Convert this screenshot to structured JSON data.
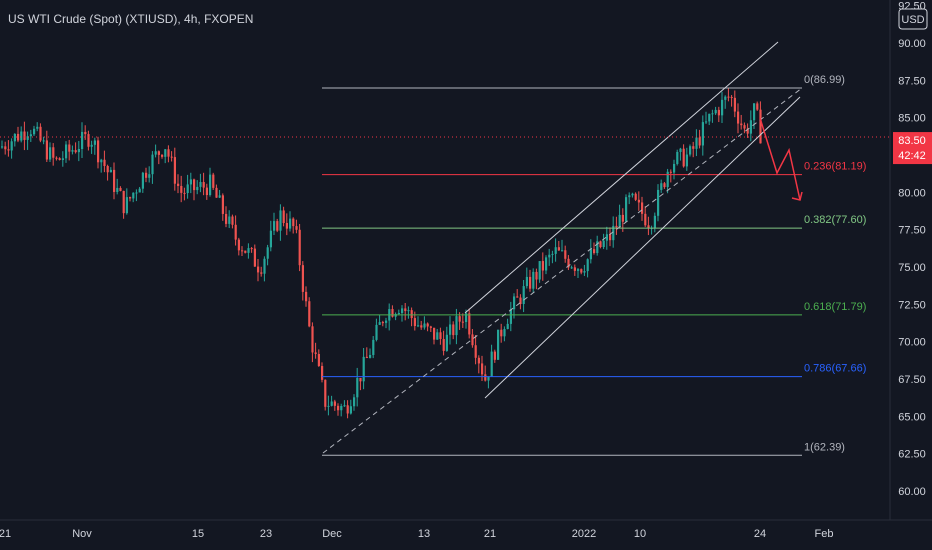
{
  "header": {
    "symbol": "US WTI Crude (Spot) (XTIUSD)",
    "interval": "4h",
    "broker": "FXOPEN"
  },
  "price_axis": {
    "currency": "USD",
    "ticks": [
      "92.50",
      "90.00",
      "87.50",
      "85.00",
      "82.50",
      "80.00",
      "77.50",
      "75.00",
      "72.50",
      "70.00",
      "67.50",
      "65.00",
      "62.50",
      "60.00"
    ],
    "last_price": "83.50",
    "countdown": "42:42"
  },
  "colors": {
    "background": "#131722",
    "up": "#26a69a",
    "down": "#ef5350",
    "fib_0": "#b2b5be",
    "fib_0236": "#f23645",
    "fib_0382": "#81c784",
    "fib_0618": "#4caf50",
    "fib_0786": "#2962ff",
    "channel": "#d1d4dc",
    "last_price_label": "#f23645"
  },
  "chart_data": {
    "type": "candlestick",
    "title": "US WTI Crude (Spot) (XTIUSD), 4h, FXOPEN",
    "x_ticks": [
      "21",
      "Nov",
      "15",
      "23",
      "Dec",
      "13",
      "21",
      "2022",
      "10",
      "24",
      "Feb"
    ],
    "ylim": [
      58.8,
      93
    ],
    "grid": false,
    "close_path": [
      {
        "t": 0,
        "price": 83.0
      },
      {
        "t": 30,
        "price": 84.4
      },
      {
        "t": 55,
        "price": 82.0
      },
      {
        "t": 90,
        "price": 83.8
      },
      {
        "t": 125,
        "price": 79.0
      },
      {
        "t": 150,
        "price": 82.0
      },
      {
        "t": 165,
        "price": 83.2
      },
      {
        "t": 180,
        "price": 80.0
      },
      {
        "t": 210,
        "price": 80.5
      },
      {
        "t": 235,
        "price": 77.0
      },
      {
        "t": 260,
        "price": 75.0
      },
      {
        "t": 280,
        "price": 78.5
      },
      {
        "t": 295,
        "price": 77.5
      },
      {
        "t": 310,
        "price": 70.5
      },
      {
        "t": 325,
        "price": 66.0
      },
      {
        "t": 345,
        "price": 65.5
      },
      {
        "t": 365,
        "price": 68.5
      },
      {
        "t": 385,
        "price": 72.0
      },
      {
        "t": 400,
        "price": 72.5
      },
      {
        "t": 420,
        "price": 71.0
      },
      {
        "t": 445,
        "price": 70.0
      },
      {
        "t": 465,
        "price": 72.0
      },
      {
        "t": 485,
        "price": 67.5
      },
      {
        "t": 505,
        "price": 71.5
      },
      {
        "t": 530,
        "price": 74.0
      },
      {
        "t": 555,
        "price": 76.0
      },
      {
        "t": 580,
        "price": 75.0
      },
      {
        "t": 610,
        "price": 77.0
      },
      {
        "t": 630,
        "price": 79.5
      },
      {
        "t": 650,
        "price": 78.0
      },
      {
        "t": 670,
        "price": 82.0
      },
      {
        "t": 690,
        "price": 82.5
      },
      {
        "t": 710,
        "price": 85.0
      },
      {
        "t": 730,
        "price": 86.5
      },
      {
        "t": 745,
        "price": 84.0
      },
      {
        "t": 755,
        "price": 85.5
      },
      {
        "t": 762,
        "price": 83.5
      }
    ],
    "fibonacci": [
      {
        "ratio": "0",
        "label": "0(86.99)",
        "price": 86.99,
        "color_key": "fib_0"
      },
      {
        "ratio": "0.236",
        "label": "0.236(81.19)",
        "price": 81.19,
        "color_key": "fib_0236"
      },
      {
        "ratio": "0.382",
        "label": "0.382(77.60)",
        "price": 77.6,
        "color_key": "fib_0382"
      },
      {
        "ratio": "0.618",
        "label": "0.618(71.79)",
        "price": 71.79,
        "color_key": "fib_0618"
      },
      {
        "ratio": "0.786",
        "label": "0.786(67.66)",
        "price": 67.66,
        "color_key": "fib_0786"
      },
      {
        "ratio": "1",
        "label": "1(62.39)",
        "price": 62.39,
        "color_key": "fib_0"
      }
    ],
    "last_price": 83.5
  }
}
